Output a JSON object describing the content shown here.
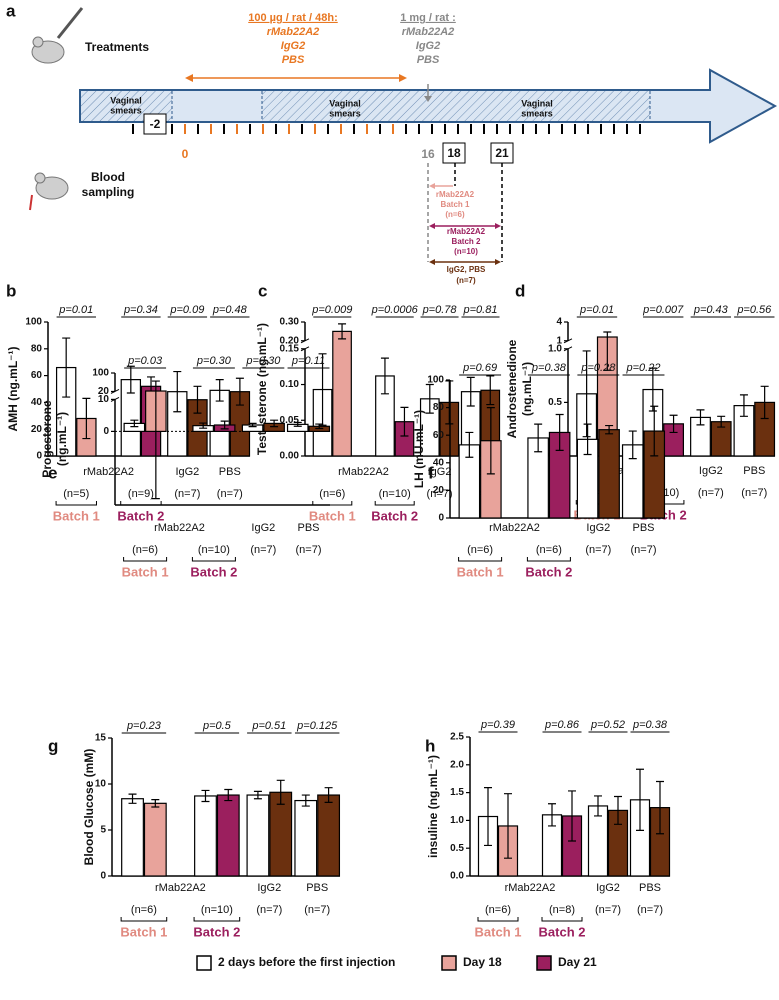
{
  "panel_a": {
    "letter": "a",
    "treatments": "Treatments",
    "blood_sampling": [
      "Blood",
      "sampling"
    ],
    "low_dose": {
      "title": "100 µg / rat / 48h:",
      "items": [
        "rMab22A2",
        "IgG2",
        "PBS"
      ]
    },
    "high_dose": {
      "title": "1 mg / rat :",
      "items": [
        "rMab22A2",
        "IgG2",
        "PBS"
      ]
    },
    "smears": [
      [
        "Vaginal",
        "smears"
      ],
      [
        "Vaginal",
        "smears"
      ],
      [
        "Vaginal",
        "smears"
      ]
    ],
    "days": [
      "-2",
      "0",
      "16",
      "18",
      "21"
    ],
    "windows": [
      [
        "rMab22A2",
        "Batch 1",
        "(n=6)"
      ],
      [
        "rMab22A2",
        "Batch 2",
        "(n=10)"
      ],
      [
        "IgG2, PBS",
        "(n=7)"
      ]
    ]
  },
  "legend": [
    {
      "name": "2 days before the first injection",
      "color": "#ffffff"
    },
    {
      "name": "Day 18",
      "color": "#e8a39b"
    },
    {
      "name": "Day 21",
      "color": "#9b1f5e"
    }
  ],
  "after_colors": [
    "#e8a39b",
    "#9b1f5e",
    "#6b300f",
    "#6b300f"
  ],
  "chart_data": [
    {
      "type": "bar",
      "letter": "b",
      "ylabel": [
        "AMH (ng.mL⁻¹)"
      ],
      "ylim": [
        0,
        100
      ],
      "yticks": [
        0,
        20,
        40,
        60,
        80,
        100
      ],
      "before": {
        "values": [
          66,
          57,
          48,
          49
        ],
        "errors": [
          22,
          10,
          15,
          8
        ]
      },
      "after": {
        "values": [
          28,
          52,
          42,
          48
        ],
        "errors": [
          15,
          7,
          10,
          10
        ]
      },
      "pvalues": [
        "p=0.01",
        "p=0.34",
        "p=0.09",
        "p=0.48"
      ],
      "groups": [
        "rMab22A2",
        "IgG2",
        "PBS"
      ],
      "ns": [
        "(n=5)",
        "(n=9)",
        "(n=7)",
        "(n=7)"
      ],
      "batches": [
        "Batch 1",
        "Batch 2"
      ]
    },
    {
      "type": "bar",
      "letter": "c",
      "ylabel": [
        "Testosterone (ng.mL⁻¹)"
      ],
      "ylim": [
        0,
        0.3
      ],
      "ybreak": [
        0.15,
        0.2
      ],
      "yticks": [
        {
          "value": 0,
          "label": "0.00"
        },
        0.05,
        {
          "value": 0.1,
          "label": "0.10"
        },
        0.15,
        {
          "value": 0.2,
          "label": "0.20"
        },
        {
          "value": 0.3,
          "label": "0.30"
        }
      ],
      "before": {
        "values": [
          0.093,
          0.112,
          0.08,
          0.09
        ],
        "errors": [
          0.05,
          0.025,
          0.02,
          0.02
        ]
      },
      "after": {
        "values": [
          0.25,
          0.048,
          0.075,
          0.092
        ],
        "errors": [
          0.04,
          0.02,
          0.03,
          0.02
        ]
      },
      "pvalues": [
        "p=0.009",
        "p=0.0006",
        "p=0.78",
        "p=0.81"
      ],
      "groups": [
        "rMab22A2",
        "IgG2",
        "PBS"
      ],
      "ns": [
        "(n=6)",
        "(n=10)",
        "(n=7)",
        "(n=7)"
      ],
      "batches": [
        "Batch 1",
        "Batch 2"
      ]
    },
    {
      "type": "bar",
      "letter": "d",
      "ylabel": [
        "Androstenedione",
        "(ng.mL⁻¹)"
      ],
      "ylim": [
        0,
        4
      ],
      "ybreak": [
        1,
        1
      ],
      "yticks": [
        {
          "value": 0,
          "label": "0.0"
        },
        0.5,
        {
          "value": 1,
          "label": "1.0"
        },
        1,
        4
      ],
      "before": {
        "values": [
          0.58,
          0.62,
          0.36,
          0.47
        ],
        "errors": [
          0.4,
          0.2,
          0.07,
          0.1
        ]
      },
      "after": {
        "values": [
          1.6,
          0.3,
          0.32,
          0.5
        ],
        "errors": [
          0.8,
          0.08,
          0.05,
          0.15
        ]
      },
      "pvalues": [
        "p=0.01",
        "p=0.007",
        "p=0.43",
        "p=0.56"
      ],
      "groups": [
        "rMab22A2",
        "IgG2",
        "PBS"
      ],
      "ns": [
        "(n=6)",
        "(n=10)",
        "(n=7)",
        "(n=7)"
      ],
      "batches": [
        "Batch 1",
        "Batch 2"
      ]
    },
    {
      "type": "bar",
      "letter": "e",
      "ylabel": [
        "Progesterone",
        "(ng.mL⁻¹)"
      ],
      "ylim": [
        -23,
        100
      ],
      "ybreak": [
        10,
        20
      ],
      "zero_line": true,
      "yticks": [
        0,
        10,
        20,
        100
      ],
      "before": {
        "values": [
          2.5,
          1.8,
          2,
          2.2
        ],
        "errors": [
          1,
          0.8,
          0.5,
          0.6
        ]
      },
      "after": {
        "values": [
          22,
          2,
          2.5,
          1.6
        ],
        "errors": [
          43,
          1.2,
          1,
          0.7
        ]
      },
      "pvalues": [
        "p=0.03",
        "p=0.30",
        "p=0.30",
        "p=0.11"
      ],
      "groups": [
        "rMab22A2",
        "IgG2",
        "PBS"
      ],
      "ns": [
        "(n=6)",
        "(n=10)",
        "(n=7)",
        "(n=7)"
      ],
      "batches": [
        "Batch 1",
        "Batch 2"
      ]
    },
    {
      "type": "bar",
      "letter": "f",
      "ylabel": [
        "LH (mU.mL⁻¹)"
      ],
      "ylim": [
        0,
        100
      ],
      "yticks": [
        0,
        20,
        40,
        60,
        80,
        100
      ],
      "before": {
        "values": [
          53,
          58,
          57,
          53
        ],
        "errors": [
          9,
          10,
          11,
          10
        ]
      },
      "after": {
        "values": [
          56,
          62,
          64,
          63
        ],
        "errors": [
          24,
          13,
          3,
          18
        ]
      },
      "pvalues": [
        "p=0.69",
        "p=0.38",
        "p=0.28",
        "p=0.22"
      ],
      "groups": [
        "rMab22A2",
        "IgG2",
        "PBS"
      ],
      "ns": [
        "(n=6)",
        "(n=6)",
        "(n=7)",
        "(n=7)"
      ],
      "batches": [
        "Batch 1",
        "Batch 2"
      ]
    },
    {
      "type": "bar",
      "letter": "g",
      "ylabel": [
        "Blood Glucose (mM)"
      ],
      "ylim": [
        0,
        15
      ],
      "yticks": [
        0,
        5,
        10,
        15
      ],
      "before": {
        "values": [
          8.4,
          8.7,
          8.8,
          8.2
        ],
        "errors": [
          0.5,
          0.6,
          0.4,
          0.6
        ]
      },
      "after": {
        "values": [
          7.9,
          8.8,
          9.1,
          8.8
        ],
        "errors": [
          0.4,
          0.6,
          1.3,
          0.8
        ]
      },
      "pvalues": [
        "p=0.23",
        "p=0.5",
        "p=0.51",
        "p=0.125"
      ],
      "groups": [
        "rMab22A2",
        "IgG2",
        "PBS"
      ],
      "ns": [
        "(n=6)",
        "(n=10)",
        "(n=7)",
        "(n=7)"
      ],
      "batches": [
        "Batch 1",
        "Batch 2"
      ]
    },
    {
      "type": "bar",
      "letter": "h",
      "ylabel": [
        "insuline (ng.mL⁻¹)"
      ],
      "ylim": [
        0,
        2.5
      ],
      "yticks": [
        {
          "value": 0,
          "label": "0.0"
        },
        0.5,
        {
          "value": 1,
          "label": "1.0"
        },
        1.5,
        {
          "value": 2,
          "label": "2.0"
        },
        2.5
      ],
      "before": {
        "values": [
          1.07,
          1.1,
          1.26,
          1.37
        ],
        "errors": [
          0.52,
          0.2,
          0.18,
          0.55
        ]
      },
      "after": {
        "values": [
          0.9,
          1.08,
          1.18,
          1.23
        ],
        "errors": [
          0.58,
          0.45,
          0.25,
          0.47
        ]
      },
      "pvalues": [
        "p=0.39",
        "p=0.86",
        "p=0.52",
        "p=0.38"
      ],
      "groups": [
        "rMab22A2",
        "IgG2",
        "PBS"
      ],
      "ns": [
        "(n=6)",
        "(n=8)",
        "(n=7)",
        "(n=7)"
      ],
      "batches": [
        "Batch 1",
        "Batch 2"
      ]
    }
  ]
}
